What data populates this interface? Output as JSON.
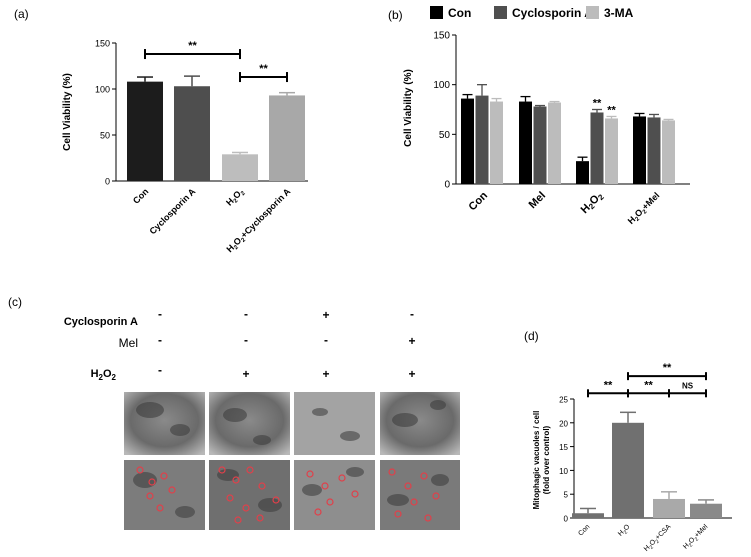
{
  "panels": {
    "a": {
      "label": "(a)"
    },
    "b": {
      "label": "(b)"
    },
    "c": {
      "label": "(c)",
      "rows": [
        {
          "label": "Cyclosporin A",
          "marks": [
            "-",
            "-",
            "+",
            "-"
          ]
        },
        {
          "label": "Mel",
          "marks": [
            "-",
            "-",
            "-",
            "+"
          ]
        },
        {
          "label": "H2O2",
          "label_main": "H",
          "label_sub1": "2",
          "label_mid": "O",
          "label_sub2": "2",
          "marks": [
            "-",
            "+",
            "+",
            "+"
          ]
        }
      ]
    },
    "d": {
      "label": "(d)"
    }
  },
  "chart_data": [
    {
      "id": "a",
      "type": "bar",
      "categories": [
        "Con",
        "Cyclosporin A",
        "H2O2",
        "H2O2+Cyclosporin A"
      ],
      "category_display": [
        [
          "Con"
        ],
        [
          "Cyclosporin A"
        ],
        [
          "H",
          "2",
          "O",
          "2"
        ],
        [
          "H",
          "2",
          "O",
          "2",
          "+Cyclosporin A"
        ]
      ],
      "values": [
        108,
        103,
        29,
        93
      ],
      "errors": [
        5,
        11,
        2,
        3
      ],
      "colors": [
        "#1c1c1c",
        "#4e4e4e",
        "#bdbdbd",
        "#a8a8a8"
      ],
      "ylabel": "Cell Viability (%)",
      "ylim": [
        0,
        150
      ],
      "yticks": [
        "0",
        "50",
        "100",
        "150"
      ],
      "significance": [
        {
          "from": 0,
          "to": 2,
          "y": 138,
          "label": "**"
        },
        {
          "from": 2,
          "to": 3,
          "y": 113,
          "label": "**"
        }
      ]
    },
    {
      "id": "b",
      "type": "bar",
      "categories": [
        "Con",
        "Mel",
        "H2O2",
        "H2O2+Mel"
      ],
      "category_display": [
        [
          "Con"
        ],
        [
          "Mel"
        ],
        [
          "H",
          "2",
          "O",
          "2"
        ],
        [
          "H",
          "2",
          "O",
          "2",
          "+Mel"
        ]
      ],
      "series": [
        {
          "name": "Con",
          "color": "#000000",
          "values": [
            86,
            83,
            23,
            68
          ],
          "errors": [
            4,
            5,
            4,
            3
          ]
        },
        {
          "name": "Cyclosporin A",
          "color": "#4f4f4f",
          "values": [
            89,
            78,
            72,
            67
          ],
          "errors": [
            11,
            1,
            3,
            3
          ]
        },
        {
          "name": "3-MA",
          "color": "#bcbcbc",
          "values": [
            83,
            82,
            66,
            64
          ],
          "errors": [
            3,
            1,
            2,
            1
          ]
        }
      ],
      "ylabel": "Cell Viability (%)",
      "ylim": [
        0,
        150
      ],
      "yticks": [
        "0",
        "50",
        "100",
        "150"
      ],
      "legend": "top",
      "annotations": [
        {
          "category": 2,
          "series": 1,
          "label": "**"
        },
        {
          "category": 2,
          "series": 2,
          "label": "**"
        }
      ]
    },
    {
      "id": "d",
      "type": "bar",
      "categories": [
        "Con",
        "H2O2",
        "H2O2+CSA",
        "H2O2+Mel"
      ],
      "category_display": [
        [
          "Con"
        ],
        [
          "H",
          "2",
          "O",
          ""
        ],
        [
          "H",
          "2",
          "O",
          "2",
          "+CSA"
        ],
        [
          "H",
          "2",
          "O",
          "2",
          "+Mel"
        ]
      ],
      "values": [
        1,
        20,
        4,
        3
      ],
      "errors": [
        1,
        2.2,
        1.5,
        0.8
      ],
      "colors": [
        "#707070",
        "#707070",
        "#a9a9a9",
        "#8a8a8a"
      ],
      "ylabel": "Mitophagic vacuoles / cell",
      "ylabel2": "(fold over control)",
      "ylim": [
        0,
        25
      ],
      "yticks": [
        "0",
        "5",
        "10",
        "15",
        "20",
        "25"
      ],
      "significance": [
        {
          "from": 0,
          "to": 1,
          "y": 26.2,
          "label": "**"
        },
        {
          "from": 1,
          "to": 2,
          "y": 26.2,
          "label": "**"
        },
        {
          "from": 2,
          "to": 3,
          "y": 26.2,
          "label": "NS"
        },
        {
          "from": 1,
          "to": 3,
          "y": 29.8,
          "label": "**"
        }
      ]
    }
  ]
}
